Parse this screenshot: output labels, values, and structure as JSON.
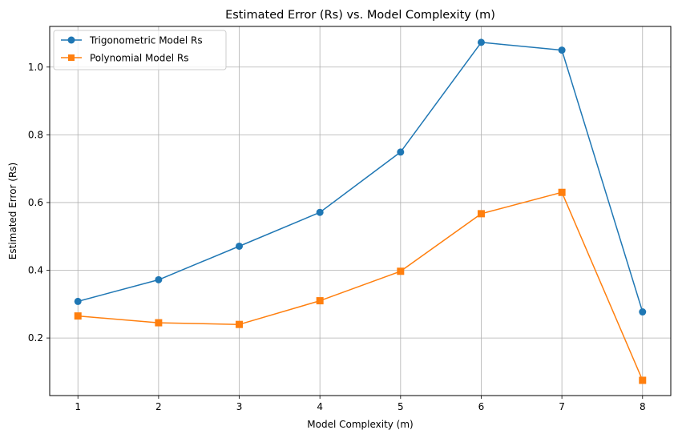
{
  "chart_data": {
    "type": "line",
    "title": "Estimated Error (Rs) vs. Model Complexity (m)",
    "xlabel": "Model Complexity (m)",
    "ylabel": "Estimated Error (Rs)",
    "x": [
      1,
      2,
      3,
      4,
      5,
      6,
      7,
      8
    ],
    "xticks": [
      1,
      2,
      3,
      4,
      5,
      6,
      7,
      8
    ],
    "yticks": [
      0.2,
      0.4,
      0.6,
      0.8,
      1.0
    ],
    "ytick_labels": [
      "0.2",
      "0.4",
      "0.6",
      "0.8",
      "1.0"
    ],
    "xlim": [
      0.65,
      8.35
    ],
    "ylim": [
      0.03,
      1.12
    ],
    "grid": true,
    "legend_position": "top-left",
    "series": [
      {
        "name": "Trigonometric Model Rs",
        "color": "#1f77b4",
        "marker": "circle",
        "values": [
          0.308,
          0.372,
          0.471,
          0.571,
          0.749,
          1.073,
          1.05,
          0.277
        ]
      },
      {
        "name": "Polynomial Model Rs",
        "color": "#ff7f0e",
        "marker": "square",
        "values": [
          0.265,
          0.245,
          0.24,
          0.31,
          0.397,
          0.567,
          0.63,
          0.075
        ]
      }
    ]
  }
}
